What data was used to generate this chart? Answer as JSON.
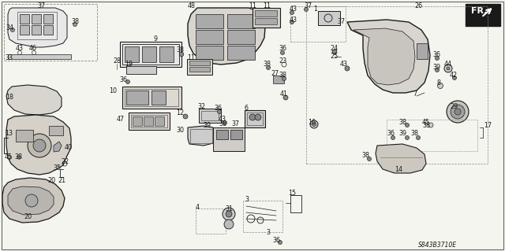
{
  "bg": "#f5f5f0",
  "black": "#1a1a1a",
  "gray": "#888888",
  "lgray": "#cccccc",
  "diagram_code": "S843B3710E",
  "lw_thick": 1.2,
  "lw_med": 0.7,
  "lw_thin": 0.45,
  "fs_label": 6.0,
  "fs_code": 5.5
}
